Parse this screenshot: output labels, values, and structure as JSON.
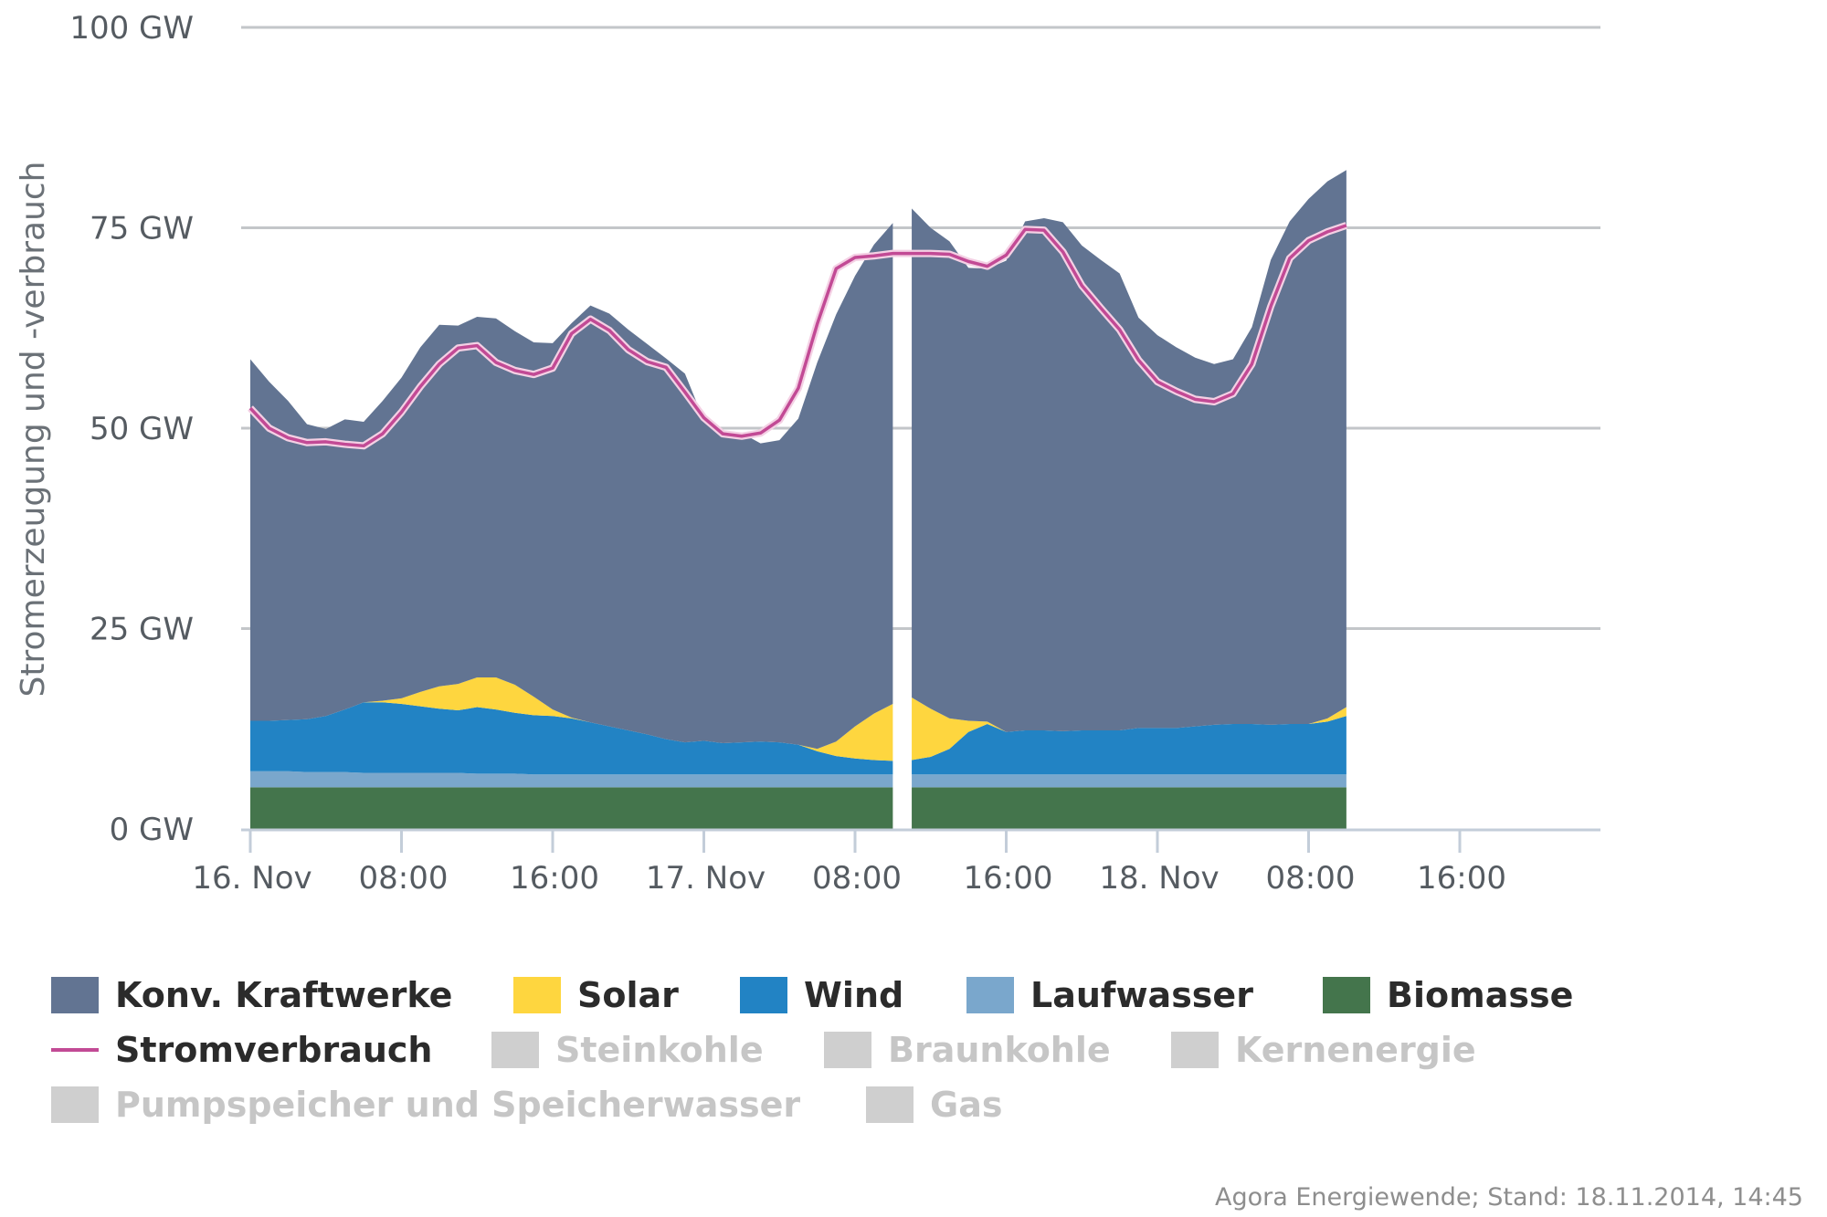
{
  "chart_data": {
    "type": "area",
    "ylabel": "Stromerzeugung und -verbrauch",
    "y_unit": "GW",
    "ylim": [
      0,
      100
    ],
    "yticks": [
      0,
      25,
      50,
      75,
      100
    ],
    "ytick_labels": [
      "0 GW",
      "25 GW",
      "50 GW",
      "75 GW",
      "100 GW"
    ],
    "xlim_hours": [
      0,
      64
    ],
    "xticks": [
      0,
      8,
      16,
      24,
      32,
      40,
      48,
      56,
      64
    ],
    "xtick_labels": [
      "16. Nov",
      "08:00",
      "16:00",
      "17. Nov",
      "08:00",
      "16:00",
      "18. Nov",
      "08:00",
      "16:00"
    ],
    "x_hours": [
      0,
      1,
      2,
      3,
      4,
      5,
      6,
      7,
      8,
      9,
      10,
      11,
      12,
      13,
      14,
      15,
      16,
      17,
      18,
      19,
      20,
      21,
      22,
      23,
      24,
      25,
      26,
      27,
      28,
      29,
      30,
      31,
      32,
      33,
      34,
      35,
      36,
      37,
      38,
      39,
      40,
      41,
      42,
      43,
      44,
      45,
      46,
      47,
      48,
      49,
      50,
      51,
      52,
      53,
      54,
      55,
      56,
      57,
      58
    ],
    "gap_after_hour": 34,
    "series": [
      {
        "name": "Biomasse",
        "color": "#44754c",
        "values": [
          5.2,
          5.2,
          5.2,
          5.2,
          5.2,
          5.2,
          5.2,
          5.2,
          5.2,
          5.2,
          5.2,
          5.2,
          5.2,
          5.2,
          5.2,
          5.2,
          5.2,
          5.2,
          5.2,
          5.2,
          5.2,
          5.2,
          5.2,
          5.2,
          5.2,
          5.2,
          5.2,
          5.2,
          5.2,
          5.2,
          5.2,
          5.2,
          5.2,
          5.2,
          5.2,
          5.2,
          5.2,
          5.2,
          5.2,
          5.2,
          5.2,
          5.2,
          5.2,
          5.2,
          5.2,
          5.2,
          5.2,
          5.2,
          5.2,
          5.2,
          5.2,
          5.2,
          5.2,
          5.2,
          5.2,
          5.2,
          5.2,
          5.2,
          5.2
        ]
      },
      {
        "name": "Laufwasser",
        "color": "#7aa7cc",
        "values": [
          2.0,
          2.0,
          2.0,
          1.9,
          1.9,
          1.9,
          1.8,
          1.8,
          1.8,
          1.8,
          1.8,
          1.8,
          1.7,
          1.7,
          1.7,
          1.6,
          1.6,
          1.6,
          1.6,
          1.6,
          1.6,
          1.6,
          1.6,
          1.6,
          1.6,
          1.6,
          1.6,
          1.6,
          1.6,
          1.6,
          1.6,
          1.6,
          1.6,
          1.6,
          1.6,
          1.6,
          1.6,
          1.6,
          1.6,
          1.6,
          1.6,
          1.6,
          1.6,
          1.6,
          1.6,
          1.6,
          1.6,
          1.6,
          1.6,
          1.6,
          1.6,
          1.6,
          1.6,
          1.6,
          1.6,
          1.6,
          1.6,
          1.6,
          1.6
        ]
      },
      {
        "name": "Wind",
        "color": "#2283c4",
        "values": [
          6.3,
          6.3,
          6.4,
          6.6,
          7.0,
          7.8,
          8.8,
          8.8,
          8.6,
          8.3,
          8.0,
          7.8,
          8.3,
          8.0,
          7.6,
          7.4,
          7.3,
          7.0,
          6.5,
          6.0,
          5.5,
          5.0,
          4.4,
          4.0,
          4.2,
          3.9,
          4.0,
          4.1,
          4.0,
          3.7,
          2.9,
          2.3,
          2.0,
          1.8,
          1.7,
          1.8,
          2.2,
          3.2,
          5.3,
          6.3,
          5.3,
          5.5,
          5.5,
          5.4,
          5.5,
          5.5,
          5.5,
          5.8,
          5.8,
          5.8,
          6.0,
          6.2,
          6.3,
          6.3,
          6.2,
          6.3,
          6.3,
          6.6,
          7.3
        ]
      },
      {
        "name": "Solar",
        "color": "#fed63f",
        "values": [
          0,
          0,
          0,
          0,
          0,
          0,
          0,
          0.2,
          0.7,
          1.8,
          2.8,
          3.3,
          3.7,
          4.0,
          3.5,
          2.3,
          0.8,
          0.1,
          0,
          0,
          0,
          0,
          0,
          0,
          0,
          0,
          0,
          0,
          0,
          0,
          0.3,
          1.8,
          4.0,
          5.8,
          7.1,
          7.8,
          6.0,
          3.8,
          1.4,
          0.3,
          0,
          0,
          0,
          0,
          0,
          0,
          0,
          0,
          0,
          0,
          0,
          0,
          0,
          0,
          0,
          0,
          0,
          0.4,
          1.1
        ]
      },
      {
        "name": "Konv. Kraftwerke",
        "color": "#627492",
        "values": [
          45.1,
          42.3,
          39.8,
          36.8,
          35.8,
          36.2,
          35.0,
          37.4,
          40.0,
          43.0,
          45.1,
          44.7,
          45.0,
          44.8,
          44.1,
          44.2,
          45.7,
          49.2,
          52.0,
          51.5,
          50.0,
          48.7,
          47.5,
          46.0,
          40.0,
          38.8,
          38.6,
          37.2,
          37.7,
          40.7,
          48.2,
          53.3,
          56.2,
          58.5,
          60.0,
          61.0,
          60.0,
          59.5,
          56.5,
          56.5,
          58.8,
          63.5,
          63.9,
          63.5,
          60.5,
          58.7,
          57.0,
          51.2,
          49.0,
          47.5,
          46.0,
          45.0,
          45.5,
          49.5,
          58.0,
          62.7,
          65.5,
          67.0,
          67.0
        ]
      },
      {
        "name": "Stromverbrauch",
        "type": "line",
        "color": "#c24a95",
        "values": [
          52.5,
          50.0,
          48.8,
          48.2,
          48.3,
          48.0,
          47.8,
          49.3,
          52.0,
          55.2,
          58.0,
          60.0,
          60.3,
          58.2,
          57.2,
          56.7,
          57.5,
          61.8,
          63.6,
          62.2,
          59.8,
          58.3,
          57.6,
          54.5,
          51.3,
          49.3,
          49.0,
          49.4,
          51.0,
          55.0,
          63.0,
          69.9,
          71.3,
          71.5,
          71.8,
          71.8,
          71.8,
          71.7,
          70.8,
          70.2,
          71.6,
          74.8,
          74.7,
          72.0,
          67.8,
          65.0,
          62.3,
          58.5,
          55.8,
          54.6,
          53.6,
          53.3,
          54.3,
          58.0,
          65.2,
          71.2,
          73.4,
          74.5,
          75.3
        ]
      }
    ],
    "legend": {
      "active": [
        "Konv. Kraftwerke",
        "Solar",
        "Wind",
        "Laufwasser",
        "Biomasse",
        "Stromverbrauch"
      ],
      "inactive": [
        "Steinkohle",
        "Braunkohle",
        "Kernenergie",
        "Pumpspeicher und Speicherwasser",
        "Gas"
      ]
    },
    "colors": {
      "grid": "#c3c6c9",
      "axis": "#c3cdd9",
      "inactive": "#cfcfcf"
    },
    "source": "Agora Energiewende; Stand: 18.11.2014, 14:45"
  }
}
